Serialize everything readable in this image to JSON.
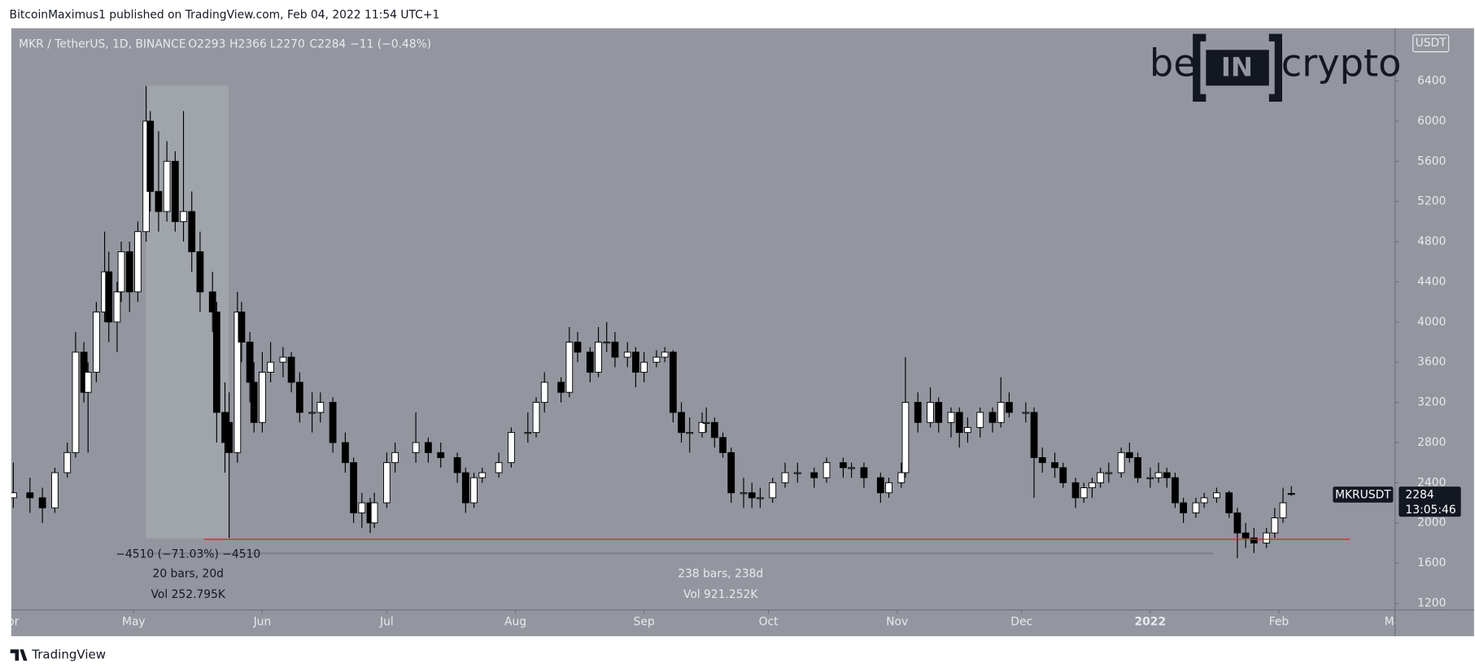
{
  "header": {
    "publisher": "BitcoinMaximus1 published on TradingView.com, Feb 04, 2022 11:54 UTC+1"
  },
  "footer": {
    "brand": "TradingView"
  },
  "logo": {
    "left": "be",
    "middle": "IN",
    "right": "crypto"
  },
  "chart_data": {
    "type": "candlestick",
    "legend": {
      "symbol": "MKR / TetherUS, 1D, BINANCE",
      "open": "O2293",
      "high": "H2366",
      "low": "L2270",
      "close": "C2284",
      "change": "−11 (−0.48%)"
    },
    "price_tag": {
      "symbol": "MKRUSDT",
      "price": "2284",
      "countdown": "13:05:46"
    },
    "currency": "USDT",
    "measure": {
      "change": "−4510 (−71.03%) −4510",
      "bars": "20 bars, 20d",
      "volume": "Vol 252.795K",
      "bars_total": "238 bars, 238d",
      "volume_total": "Vol 921.252K"
    },
    "up_color": "#ffffff",
    "down_color": "#000000",
    "background": "#93969f",
    "xlim": [
      0.5,
      334
    ],
    "xticks": [
      {
        "value": 0,
        "label": "Apr"
      },
      {
        "value": 30,
        "label": "May"
      },
      {
        "value": 61,
        "label": "Jun"
      },
      {
        "value": 91,
        "label": "Jul"
      },
      {
        "value": 122,
        "label": "Aug"
      },
      {
        "value": 153,
        "label": "Sep"
      },
      {
        "value": 183,
        "label": "Oct"
      },
      {
        "value": 214,
        "label": "Nov"
      },
      {
        "value": 244,
        "label": "Dec"
      },
      {
        "value": 275,
        "label": "2022"
      },
      {
        "value": 306,
        "label": "Feb"
      },
      {
        "value": 334,
        "label": "Mar"
      }
    ],
    "ylim": [
      1134,
      6925
    ],
    "yticks": [
      1200,
      1600,
      2000,
      2400,
      2800,
      3200,
      3600,
      4000,
      4400,
      4800,
      5200,
      5600,
      6000,
      6400
    ],
    "candles": [
      {
        "x": 1,
        "open": 2250,
        "high": 2600,
        "low": 2150,
        "close": 2300
      },
      {
        "x": 5,
        "open": 2300,
        "high": 2450,
        "low": 2100,
        "close": 2250
      },
      {
        "x": 8,
        "open": 2250,
        "high": 2350,
        "low": 2000,
        "close": 2150
      },
      {
        "x": 11,
        "open": 2150,
        "high": 2550,
        "low": 2100,
        "close": 2500
      },
      {
        "x": 14,
        "open": 2500,
        "high": 2800,
        "low": 2450,
        "close": 2700
      },
      {
        "x": 16,
        "open": 2700,
        "high": 3900,
        "low": 2650,
        "close": 3700
      },
      {
        "x": 18,
        "open": 3700,
        "high": 3800,
        "low": 3200,
        "close": 3300
      },
      {
        "x": 19,
        "open": 3300,
        "high": 3600,
        "low": 2700,
        "close": 3500
      },
      {
        "x": 21,
        "open": 3500,
        "high": 4200,
        "low": 3400,
        "close": 4100
      },
      {
        "x": 23,
        "open": 4100,
        "high": 4900,
        "low": 4000,
        "close": 4500
      },
      {
        "x": 24,
        "open": 4500,
        "high": 4700,
        "low": 3800,
        "close": 4000
      },
      {
        "x": 26,
        "open": 4000,
        "high": 4400,
        "low": 3700,
        "close": 4300
      },
      {
        "x": 27,
        "open": 4300,
        "high": 4800,
        "low": 4200,
        "close": 4700
      },
      {
        "x": 29,
        "open": 4700,
        "high": 4800,
        "low": 4100,
        "close": 4300
      },
      {
        "x": 31,
        "open": 4300,
        "high": 5000,
        "low": 4200,
        "close": 4900
      },
      {
        "x": 33,
        "open": 4900,
        "high": 6350,
        "low": 4800,
        "close": 6000
      },
      {
        "x": 34,
        "open": 6000,
        "high": 6100,
        "low": 5100,
        "close": 5300
      },
      {
        "x": 36,
        "open": 5300,
        "high": 5900,
        "low": 4900,
        "close": 5100
      },
      {
        "x": 38,
        "open": 5100,
        "high": 5800,
        "low": 5000,
        "close": 5600
      },
      {
        "x": 40,
        "open": 5600,
        "high": 5700,
        "low": 4900,
        "close": 5000
      },
      {
        "x": 42,
        "open": 5000,
        "high": 6100,
        "low": 4800,
        "close": 5100
      },
      {
        "x": 44,
        "open": 5100,
        "high": 5300,
        "low": 4500,
        "close": 4700
      },
      {
        "x": 46,
        "open": 4700,
        "high": 4900,
        "low": 4100,
        "close": 4300
      },
      {
        "x": 49,
        "open": 4300,
        "high": 4500,
        "low": 3900,
        "close": 4100
      },
      {
        "x": 50,
        "open": 4100,
        "high": 4200,
        "low": 2800,
        "close": 3100
      },
      {
        "x": 52,
        "open": 3100,
        "high": 3400,
        "low": 2500,
        "close": 2800
      },
      {
        "x": 53,
        "open": 3000,
        "high": 3300,
        "low": 1850,
        "close": 2700
      },
      {
        "x": 55,
        "open": 2700,
        "high": 4300,
        "low": 2600,
        "close": 4100
      },
      {
        "x": 56,
        "open": 4100,
        "high": 4200,
        "low": 3600,
        "close": 3800
      },
      {
        "x": 58,
        "open": 3800,
        "high": 3900,
        "low": 3200,
        "close": 3400
      },
      {
        "x": 59,
        "open": 3400,
        "high": 3600,
        "low": 2900,
        "close": 3000
      },
      {
        "x": 61,
        "open": 3000,
        "high": 3700,
        "low": 2900,
        "close": 3500
      },
      {
        "x": 63,
        "open": 3500,
        "high": 3800,
        "low": 3400,
        "close": 3600
      },
      {
        "x": 66,
        "open": 3600,
        "high": 3750,
        "low": 3450,
        "close": 3650
      },
      {
        "x": 68,
        "open": 3650,
        "high": 3700,
        "low": 3300,
        "close": 3400
      },
      {
        "x": 70,
        "open": 3400,
        "high": 3500,
        "low": 3000,
        "close": 3100
      },
      {
        "x": 73,
        "open": 3100,
        "high": 3300,
        "low": 2900,
        "close": 3100
      },
      {
        "x": 75,
        "open": 3100,
        "high": 3300,
        "low": 3000,
        "close": 3200
      },
      {
        "x": 78,
        "open": 3200,
        "high": 3250,
        "low": 2700,
        "close": 2800
      },
      {
        "x": 81,
        "open": 2800,
        "high": 2900,
        "low": 2500,
        "close": 2600
      },
      {
        "x": 83,
        "open": 2600,
        "high": 2650,
        "low": 2000,
        "close": 2100
      },
      {
        "x": 85,
        "open": 2100,
        "high": 2300,
        "low": 1950,
        "close": 2200
      },
      {
        "x": 87,
        "open": 2200,
        "high": 2250,
        "low": 1900,
        "close": 2000
      },
      {
        "x": 88,
        "open": 2000,
        "high": 2300,
        "low": 1950,
        "close": 2200
      },
      {
        "x": 91,
        "open": 2200,
        "high": 2700,
        "low": 2150,
        "close": 2600
      },
      {
        "x": 93,
        "open": 2600,
        "high": 2800,
        "low": 2500,
        "close": 2700
      },
      {
        "x": 98,
        "open": 2700,
        "high": 3100,
        "low": 2600,
        "close": 2800
      },
      {
        "x": 101,
        "open": 2800,
        "high": 2850,
        "low": 2600,
        "close": 2700
      },
      {
        "x": 104,
        "open": 2700,
        "high": 2800,
        "low": 2550,
        "close": 2650
      },
      {
        "x": 108,
        "open": 2650,
        "high": 2700,
        "low": 2400,
        "close": 2500
      },
      {
        "x": 110,
        "open": 2500,
        "high": 2550,
        "low": 2100,
        "close": 2200
      },
      {
        "x": 112,
        "open": 2200,
        "high": 2500,
        "low": 2150,
        "close": 2450
      },
      {
        "x": 114,
        "open": 2450,
        "high": 2550,
        "low": 2400,
        "close": 2500
      },
      {
        "x": 118,
        "open": 2500,
        "high": 2700,
        "low": 2450,
        "close": 2600
      },
      {
        "x": 121,
        "open": 2600,
        "high": 2950,
        "low": 2550,
        "close": 2900
      },
      {
        "x": 125,
        "open": 2900,
        "high": 3100,
        "low": 2800,
        "close": 2900
      },
      {
        "x": 127,
        "open": 2900,
        "high": 3250,
        "low": 2850,
        "close": 3200
      },
      {
        "x": 129,
        "open": 3200,
        "high": 3500,
        "low": 3100,
        "close": 3400
      },
      {
        "x": 133,
        "open": 3400,
        "high": 3450,
        "low": 3200,
        "close": 3300
      },
      {
        "x": 135,
        "open": 3300,
        "high": 3950,
        "low": 3250,
        "close": 3800
      },
      {
        "x": 137,
        "open": 3800,
        "high": 3900,
        "low": 3600,
        "close": 3700
      },
      {
        "x": 140,
        "open": 3700,
        "high": 3750,
        "low": 3400,
        "close": 3500
      },
      {
        "x": 142,
        "open": 3500,
        "high": 3950,
        "low": 3450,
        "close": 3800
      },
      {
        "x": 144,
        "open": 3800,
        "high": 4000,
        "low": 3700,
        "close": 3800
      },
      {
        "x": 146,
        "open": 3800,
        "high": 3900,
        "low": 3550,
        "close": 3650
      },
      {
        "x": 149,
        "open": 3650,
        "high": 3800,
        "low": 3550,
        "close": 3700
      },
      {
        "x": 151,
        "open": 3700,
        "high": 3750,
        "low": 3350,
        "close": 3500
      },
      {
        "x": 153,
        "open": 3500,
        "high": 3700,
        "low": 3400,
        "close": 3600
      },
      {
        "x": 156,
        "open": 3600,
        "high": 3720,
        "low": 3550,
        "close": 3650
      },
      {
        "x": 158,
        "open": 3650,
        "high": 3750,
        "low": 3600,
        "close": 3700
      },
      {
        "x": 160,
        "open": 3700,
        "high": 3720,
        "low": 3000,
        "close": 3100
      },
      {
        "x": 162,
        "open": 3100,
        "high": 3200,
        "low": 2800,
        "close": 2900
      },
      {
        "x": 164,
        "open": 2900,
        "high": 3050,
        "low": 2700,
        "close": 2900
      },
      {
        "x": 167,
        "open": 2900,
        "high": 3100,
        "low": 2850,
        "close": 3000
      },
      {
        "x": 168,
        "open": 3000,
        "high": 3150,
        "low": 2900,
        "close": 3000
      },
      {
        "x": 170,
        "open": 3000,
        "high": 3050,
        "low": 2750,
        "close": 2850
      },
      {
        "x": 172,
        "open": 2850,
        "high": 2900,
        "low": 2650,
        "close": 2700
      },
      {
        "x": 174,
        "open": 2700,
        "high": 2750,
        "low": 2200,
        "close": 2300
      },
      {
        "x": 177,
        "open": 2300,
        "high": 2450,
        "low": 2150,
        "close": 2300
      },
      {
        "x": 179,
        "open": 2300,
        "high": 2400,
        "low": 2150,
        "close": 2250
      },
      {
        "x": 181,
        "open": 2250,
        "high": 2350,
        "low": 2150,
        "close": 2250
      },
      {
        "x": 184,
        "open": 2250,
        "high": 2450,
        "low": 2200,
        "close": 2400
      },
      {
        "x": 187,
        "open": 2400,
        "high": 2600,
        "low": 2350,
        "close": 2500
      },
      {
        "x": 190,
        "open": 2500,
        "high": 2600,
        "low": 2400,
        "close": 2500
      },
      {
        "x": 194,
        "open": 2500,
        "high": 2550,
        "low": 2350,
        "close": 2450
      },
      {
        "x": 197,
        "open": 2450,
        "high": 2650,
        "low": 2400,
        "close": 2600
      },
      {
        "x": 201,
        "open": 2600,
        "high": 2650,
        "low": 2450,
        "close": 2550
      },
      {
        "x": 203,
        "open": 2550,
        "high": 2600,
        "low": 2450,
        "close": 2550
      },
      {
        "x": 206,
        "open": 2550,
        "high": 2600,
        "low": 2350,
        "close": 2450
      },
      {
        "x": 210,
        "open": 2450,
        "high": 2500,
        "low": 2200,
        "close": 2300
      },
      {
        "x": 212,
        "open": 2300,
        "high": 2450,
        "low": 2250,
        "close": 2400
      },
      {
        "x": 215,
        "open": 2400,
        "high": 2600,
        "low": 2350,
        "close": 2500
      },
      {
        "x": 216,
        "open": 2500,
        "high": 3650,
        "low": 2450,
        "close": 3200
      },
      {
        "x": 219,
        "open": 3200,
        "high": 3300,
        "low": 2900,
        "close": 3000
      },
      {
        "x": 222,
        "open": 3000,
        "high": 3350,
        "low": 2950,
        "close": 3200
      },
      {
        "x": 224,
        "open": 3200,
        "high": 3250,
        "low": 2900,
        "close": 3000
      },
      {
        "x": 227,
        "open": 3000,
        "high": 3150,
        "low": 2850,
        "close": 3100
      },
      {
        "x": 229,
        "open": 3100,
        "high": 3150,
        "low": 2750,
        "close": 2900
      },
      {
        "x": 231,
        "open": 2900,
        "high": 3050,
        "low": 2800,
        "close": 2950
      },
      {
        "x": 234,
        "open": 2950,
        "high": 3150,
        "low": 2850,
        "close": 3100
      },
      {
        "x": 237,
        "open": 3100,
        "high": 3150,
        "low": 2900,
        "close": 3000
      },
      {
        "x": 239,
        "open": 3000,
        "high": 3450,
        "low": 2950,
        "close": 3200
      },
      {
        "x": 241,
        "open": 3200,
        "high": 3300,
        "low": 3050,
        "close": 3100
      },
      {
        "x": 245,
        "open": 3100,
        "high": 3200,
        "low": 3000,
        "close": 3100
      },
      {
        "x": 247,
        "open": 3100,
        "high": 3150,
        "low": 2250,
        "close": 2650
      },
      {
        "x": 249,
        "open": 2650,
        "high": 2750,
        "low": 2500,
        "close": 2600
      },
      {
        "x": 252,
        "open": 2600,
        "high": 2700,
        "low": 2450,
        "close": 2550
      },
      {
        "x": 254,
        "open": 2550,
        "high": 2600,
        "low": 2350,
        "close": 2400
      },
      {
        "x": 257,
        "open": 2400,
        "high": 2450,
        "low": 2150,
        "close": 2250
      },
      {
        "x": 259,
        "open": 2250,
        "high": 2400,
        "low": 2200,
        "close": 2350
      },
      {
        "x": 261,
        "open": 2350,
        "high": 2450,
        "low": 2250,
        "close": 2400
      },
      {
        "x": 263,
        "open": 2400,
        "high": 2550,
        "low": 2350,
        "close": 2500
      },
      {
        "x": 265,
        "open": 2500,
        "high": 2600,
        "low": 2400,
        "close": 2500
      },
      {
        "x": 268,
        "open": 2500,
        "high": 2750,
        "low": 2450,
        "close": 2700
      },
      {
        "x": 270,
        "open": 2700,
        "high": 2800,
        "low": 2600,
        "close": 2650
      },
      {
        "x": 272,
        "open": 2650,
        "high": 2700,
        "low": 2400,
        "close": 2450
      },
      {
        "x": 275,
        "open": 2450,
        "high": 2550,
        "low": 2350,
        "close": 2450
      },
      {
        "x": 277,
        "open": 2450,
        "high": 2600,
        "low": 2400,
        "close": 2500
      },
      {
        "x": 279,
        "open": 2500,
        "high": 2550,
        "low": 2350,
        "close": 2450
      },
      {
        "x": 281,
        "open": 2450,
        "high": 2500,
        "low": 2150,
        "close": 2200
      },
      {
        "x": 283,
        "open": 2200,
        "high": 2250,
        "low": 2000,
        "close": 2100
      },
      {
        "x": 286,
        "open": 2100,
        "high": 2250,
        "low": 2050,
        "close": 2200
      },
      {
        "x": 288,
        "open": 2200,
        "high": 2300,
        "low": 2150,
        "close": 2250
      },
      {
        "x": 291,
        "open": 2250,
        "high": 2350,
        "low": 2200,
        "close": 2300
      },
      {
        "x": 294,
        "open": 2300,
        "high": 2320,
        "low": 2050,
        "close": 2100
      },
      {
        "x": 296,
        "open": 2100,
        "high": 2150,
        "low": 1650,
        "close": 1900
      },
      {
        "x": 298,
        "open": 1900,
        "high": 2000,
        "low": 1750,
        "close": 1850
      },
      {
        "x": 300,
        "open": 1850,
        "high": 1950,
        "low": 1700,
        "close": 1800
      },
      {
        "x": 303,
        "open": 1800,
        "high": 1950,
        "low": 1750,
        "close": 1900
      },
      {
        "x": 305,
        "open": 1900,
        "high": 2150,
        "low": 1850,
        "close": 2050
      },
      {
        "x": 307,
        "open": 2050,
        "high": 2350,
        "low": 2000,
        "close": 2200
      },
      {
        "x": 309,
        "open": 2293,
        "high": 2366,
        "low": 2270,
        "close": 2284
      }
    ]
  }
}
